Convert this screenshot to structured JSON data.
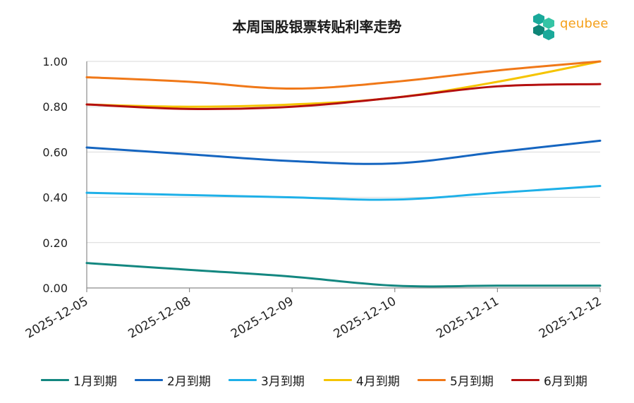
{
  "chart_data": {
    "type": "line",
    "title": "本周国股银票转贴利率走势",
    "xlabel": "",
    "ylabel": "",
    "x": [
      "2025-12-05",
      "2025-12-08",
      "2025-12-09",
      "2025-12-10",
      "2025-12-11",
      "2025-12-12"
    ],
    "ylim": [
      0,
      1.0
    ],
    "yticks": [
      "0.00",
      "0.20",
      "0.40",
      "0.60",
      "0.80",
      "1.00"
    ],
    "grid": true,
    "legend_position": "bottom",
    "series": [
      {
        "name": "1月到期",
        "color": "#138780",
        "values": [
          0.11,
          0.08,
          0.05,
          0.01,
          0.01,
          0.01
        ]
      },
      {
        "name": "2月到期",
        "color": "#1565c0",
        "values": [
          0.62,
          0.59,
          0.56,
          0.55,
          0.6,
          0.65
        ]
      },
      {
        "name": "3月到期",
        "color": "#1eb0e8",
        "values": [
          0.42,
          0.41,
          0.4,
          0.39,
          0.42,
          0.45
        ]
      },
      {
        "name": "4月到期",
        "color": "#f5c400",
        "values": [
          0.81,
          0.8,
          0.81,
          0.84,
          0.91,
          1.0
        ]
      },
      {
        "name": "5月到期",
        "color": "#f07818",
        "values": [
          0.93,
          0.91,
          0.88,
          0.91,
          0.96,
          1.0
        ]
      },
      {
        "name": "6月到期",
        "color": "#b40f0f",
        "values": [
          0.81,
          0.79,
          0.8,
          0.84,
          0.89,
          0.9
        ]
      }
    ]
  },
  "logo": {
    "text": "qeubee",
    "colors": [
      "#1aa99a",
      "#35c4a5",
      "#0e8577"
    ]
  }
}
